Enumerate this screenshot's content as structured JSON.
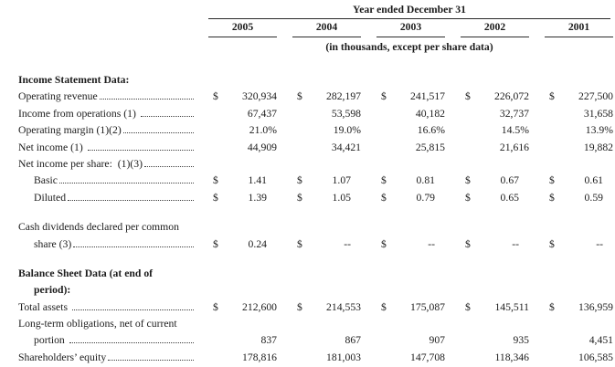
{
  "header": {
    "title": "Year ended December 31",
    "years": [
      "2005",
      "2004",
      "2003",
      "2002",
      "2001"
    ],
    "subtitle": "(in thousands, except per share data)"
  },
  "table": {
    "rows": [
      {
        "style": "section",
        "lines": [
          {
            "t": "Income Statement Data:"
          }
        ]
      },
      {
        "style": "item",
        "lines": [
          {
            "t": "Operating revenue",
            "leader": true
          }
        ],
        "cells": [
          {
            "d": "$",
            "v": "320,934"
          },
          {
            "d": "$",
            "v": "282,197"
          },
          {
            "d": "$",
            "v": "241,517"
          },
          {
            "d": "$",
            "v": "226,072"
          },
          {
            "d": "$",
            "v": "227,500"
          }
        ]
      },
      {
        "style": "item",
        "lines": [
          {
            "t": "Income from operations (1) ",
            "leader": true
          }
        ],
        "cells": [
          {
            "v": "67,437"
          },
          {
            "v": "53,598"
          },
          {
            "v": "40,182"
          },
          {
            "v": "32,737"
          },
          {
            "v": "31,658"
          }
        ]
      },
      {
        "style": "item",
        "lines": [
          {
            "t": "Operating margin (1)(2)",
            "leader": true
          }
        ],
        "cells": [
          {
            "v": "21.0%"
          },
          {
            "v": "19.0%"
          },
          {
            "v": "16.6%"
          },
          {
            "v": "14.5%"
          },
          {
            "v": "13.9%"
          }
        ]
      },
      {
        "style": "item",
        "lines": [
          {
            "t": "Net income (1) ",
            "leader": true
          }
        ],
        "cells": [
          {
            "v": "44,909"
          },
          {
            "v": "34,421"
          },
          {
            "v": "25,815"
          },
          {
            "v": "21,616"
          },
          {
            "v": "19,882"
          }
        ]
      },
      {
        "style": "item",
        "lines": [
          {
            "t": "Net income per share:  (1)(3)",
            "leader": true
          }
        ]
      },
      {
        "style": "item",
        "cellStyle": "inset",
        "lines": [
          {
            "t": "Basic",
            "indent": true,
            "leader": true
          }
        ],
        "cells": [
          {
            "d": "$",
            "v": "1.41"
          },
          {
            "d": "$",
            "v": "1.07"
          },
          {
            "d": "$",
            "v": "0.81"
          },
          {
            "d": "$",
            "v": "0.67"
          },
          {
            "d": "$",
            "v": "0.61"
          }
        ]
      },
      {
        "style": "item",
        "cellStyle": "inset",
        "lines": [
          {
            "t": "Diluted",
            "indent": true,
            "leader": true
          }
        ],
        "cells": [
          {
            "d": "$",
            "v": "1.39"
          },
          {
            "d": "$",
            "v": "1.05"
          },
          {
            "d": "$",
            "v": "0.79"
          },
          {
            "d": "$",
            "v": "0.65"
          },
          {
            "d": "$",
            "v": "0.59"
          }
        ]
      },
      {
        "style": "gap"
      },
      {
        "style": "item",
        "cellStyle": "inset",
        "lines": [
          {
            "t": "Cash dividends declared per common"
          },
          {
            "t": "share (3)",
            "indent": true,
            "leader": true
          }
        ],
        "cells": [
          {
            "d": "$",
            "v": "0.24"
          },
          {
            "d": "$",
            "v": "--"
          },
          {
            "d": "$",
            "v": "--"
          },
          {
            "d": "$",
            "v": "--"
          },
          {
            "d": "$",
            "v": "--"
          }
        ]
      },
      {
        "style": "gap"
      },
      {
        "style": "section",
        "lines": [
          {
            "t": "Balance Sheet Data (at end of"
          },
          {
            "t": "period):",
            "indent": true
          }
        ]
      },
      {
        "style": "item",
        "lines": [
          {
            "t": "Total assets ",
            "leader": true
          }
        ],
        "cells": [
          {
            "d": "$",
            "v": "212,600"
          },
          {
            "d": "$",
            "v": "214,553"
          },
          {
            "d": "$",
            "v": "175,087"
          },
          {
            "d": "$",
            "v": "145,511"
          },
          {
            "d": "$",
            "v": "136,959"
          }
        ]
      },
      {
        "style": "item",
        "lines": [
          {
            "t": "Long-term obligations, net of current"
          },
          {
            "t": "portion ",
            "indent": true,
            "leader": true
          }
        ],
        "cells": [
          {
            "v": "837"
          },
          {
            "v": "867"
          },
          {
            "v": "907"
          },
          {
            "v": "935"
          },
          {
            "v": "4,451"
          }
        ]
      },
      {
        "style": "item",
        "lines": [
          {
            "t": "Shareholders’ equity",
            "leader": true
          }
        ],
        "cells": [
          {
            "v": "178,816"
          },
          {
            "v": "181,003"
          },
          {
            "v": "147,708"
          },
          {
            "v": "118,346"
          },
          {
            "v": "106,585"
          }
        ]
      }
    ]
  }
}
